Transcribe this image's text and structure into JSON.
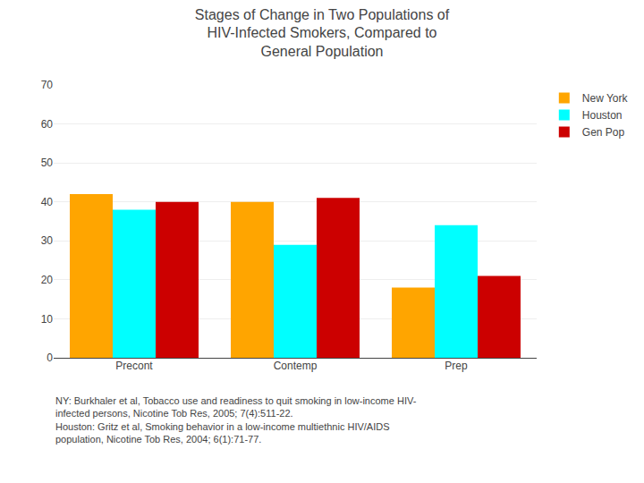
{
  "chart_data": {
    "type": "bar",
    "title": "Stages of Change in Two Populations of\nHIV-Infected Smokers, Compared to\nGeneral Population",
    "categories": [
      "Precont",
      "Contemp",
      "Prep"
    ],
    "series": [
      {
        "name": "New York",
        "color": "#FFA500",
        "values": [
          42,
          40,
          18
        ]
      },
      {
        "name": "Houston",
        "color": "#00FFFF",
        "values": [
          38,
          29,
          34
        ]
      },
      {
        "name": "Gen Pop",
        "color": "#CC0000",
        "values": [
          40,
          41,
          21
        ]
      }
    ],
    "ylim": [
      0,
      70
    ],
    "yticks": [
      0,
      10,
      20,
      30,
      40,
      50,
      60,
      70
    ],
    "grid": true,
    "legend": "upper right",
    "annotations": [
      "NY: Burkhaler et al, Tobacco use and readiness to quit smoking in low-income HIV-",
      "infected persons, Nicotine Tob Res, 2005; 7(4):511-22.",
      "Houston: Gritz et al, Smoking behavior in a low-income multiethnic HIV/AIDS",
      "population, Nicotine Tob Res, 2004; 6(1):71-77."
    ]
  }
}
